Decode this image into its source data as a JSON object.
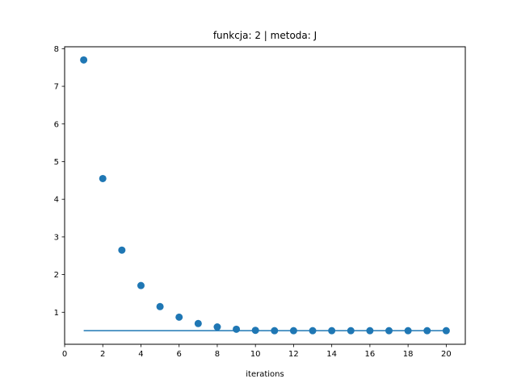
{
  "chart_data": {
    "type": "scatter",
    "title": "funkcja: 2 | metoda: J",
    "xlabel": "iterations",
    "ylabel": "",
    "xlim": [
      0,
      21
    ],
    "ylim": [
      0.15,
      8.05
    ],
    "xticks": [
      0,
      2,
      4,
      6,
      8,
      10,
      12,
      14,
      16,
      18,
      20
    ],
    "yticks": [
      1,
      2,
      3,
      4,
      5,
      6,
      7,
      8
    ],
    "grid": false,
    "color": "#1f77b4",
    "series": [
      {
        "type": "scatter",
        "x": [
          1,
          2,
          3,
          4,
          5,
          6,
          7,
          8,
          9,
          10,
          11,
          12,
          13,
          14,
          15,
          16,
          17,
          18,
          19,
          20
        ],
        "y": [
          7.7,
          4.55,
          2.65,
          1.71,
          1.15,
          0.87,
          0.7,
          0.61,
          0.55,
          0.52,
          0.51,
          0.51,
          0.51,
          0.51,
          0.51,
          0.51,
          0.51,
          0.51,
          0.51,
          0.51
        ]
      },
      {
        "type": "line",
        "x": [
          1,
          20
        ],
        "y": [
          0.51,
          0.51
        ]
      }
    ]
  }
}
